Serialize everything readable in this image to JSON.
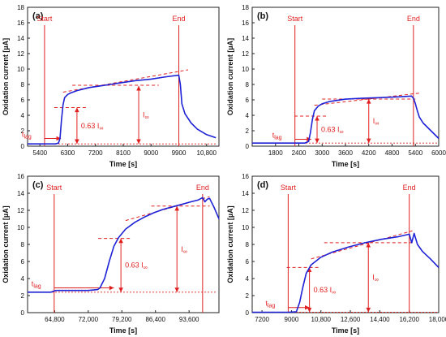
{
  "chart_data": [
    {
      "type": "line",
      "panel_label": "(a)",
      "xlabel": "Time [s]",
      "ylabel": "Oxidation current [µA]",
      "xlim": [
        5000,
        11200
      ],
      "ylim": [
        0,
        18
      ],
      "xticks": [
        5400,
        6300,
        7200,
        8100,
        9000,
        9900,
        10800
      ],
      "xtick_labels": [
        "5400",
        "6300",
        "7200",
        "8100",
        "9000",
        "9900",
        "10,800"
      ],
      "yticks": [
        0,
        2,
        4,
        6,
        8,
        10,
        12,
        14,
        16,
        18
      ],
      "series": [
        {
          "x": [
            5000,
            5600,
            5900,
            6000,
            6050,
            6100,
            6150,
            6200,
            6300,
            6400,
            6600,
            7000,
            7500,
            8000,
            8500,
            9000,
            9500,
            9900,
            9950,
            10000,
            10100,
            10300,
            10500,
            10800,
            11100
          ],
          "y": [
            0.3,
            0.3,
            0.3,
            0.4,
            1.0,
            3.5,
            5.4,
            6.3,
            6.7,
            6.9,
            7.2,
            7.6,
            7.9,
            8.2,
            8.5,
            8.7,
            9.0,
            9.2,
            8.0,
            5.5,
            4.2,
            3.0,
            2.2,
            1.5,
            1.1
          ]
        }
      ],
      "annotations": {
        "start": {
          "x": 5550,
          "label": "Start"
        },
        "end": {
          "x": 9900,
          "label": "End"
        },
        "t_lag": {
          "label": "t",
          "sub": "lag",
          "x0": 5550,
          "x1": 6080,
          "y": 1.0
        },
        "i_inf": {
          "label": "I",
          "sub": "∞",
          "level": 7.8,
          "x": 8600
        },
        "i63": {
          "label": "0.63 I",
          "sub": "∞",
          "level": 5.0,
          "x": 6600
        },
        "tangent": [
          [
            6150,
            7.0
          ],
          [
            10200,
            9.9
          ]
        ],
        "steady": [
          [
            6450,
            7.9
          ],
          [
            9250,
            7.9
          ]
        ]
      }
    },
    {
      "type": "line",
      "panel_label": "(b)",
      "xlabel": "Time [s]",
      "ylabel": "Oxidation current [µA]",
      "xlim": [
        1200,
        6000
      ],
      "ylim": [
        0,
        18
      ],
      "xticks": [
        1800,
        2400,
        3000,
        3600,
        4200,
        4800,
        5400,
        6000
      ],
      "xtick_labels": [
        "1800",
        "2400",
        "3000",
        "3600",
        "4200",
        "4800",
        "5400",
        "6000"
      ],
      "yticks": [
        0,
        2,
        4,
        6,
        8,
        10,
        12,
        14,
        16,
        18
      ],
      "series": [
        {
          "x": [
            1200,
            2200,
            2550,
            2650,
            2700,
            2750,
            2800,
            2900,
            3000,
            3200,
            3600,
            4000,
            4500,
            5000,
            5300,
            5350,
            5400,
            5450,
            5500,
            5600,
            5800,
            6000
          ],
          "y": [
            0.4,
            0.4,
            0.4,
            0.6,
            1.8,
            3.5,
            4.6,
            5.2,
            5.5,
            5.8,
            6.1,
            6.2,
            6.3,
            6.4,
            6.5,
            6.2,
            5.5,
            4.6,
            3.8,
            3.0,
            2.0,
            1.0
          ]
        }
      ],
      "annotations": {
        "start": {
          "x": 2300,
          "label": "Start"
        },
        "end": {
          "x": 5350,
          "label": "End"
        },
        "t_lag": {
          "label": "t",
          "sub": "lag",
          "x0": 2300,
          "x1": 2720,
          "y": 0.9
        },
        "i_inf": {
          "label": "I",
          "sub": "∞",
          "level": 6.1,
          "x": 4200
        },
        "i63": {
          "label": "0.63 I",
          "sub": "∞",
          "level": 3.9,
          "x": 2870
        },
        "tangent": [
          [
            2800,
            5.3
          ],
          [
            5550,
            6.9
          ]
        ],
        "steady": [
          [
            3000,
            6.1
          ],
          [
            5400,
            6.1
          ]
        ]
      }
    },
    {
      "type": "line",
      "panel_label": "(c)",
      "xlabel": "Time [s]",
      "ylabel": "Oxidation current [µA]",
      "xlim": [
        59000,
        100000
      ],
      "ylim": [
        0,
        16
      ],
      "xticks": [
        64800,
        72000,
        79200,
        86400,
        93600
      ],
      "xtick_labels": [
        "64,800",
        "72,000",
        "79,200",
        "86,400",
        "93,600"
      ],
      "yticks": [
        0,
        2,
        4,
        6,
        8,
        10,
        12,
        14,
        16
      ],
      "series": [
        {
          "x": [
            59000,
            64000,
            65000,
            68000,
            72000,
            74000,
            74500,
            75500,
            76500,
            77500,
            78500,
            80000,
            82000,
            84000,
            86000,
            88000,
            90000,
            92000,
            94000,
            95500,
            96500,
            97000,
            97500,
            98000,
            99000,
            100000
          ],
          "y": [
            2.4,
            2.4,
            2.6,
            2.6,
            2.6,
            2.7,
            2.9,
            4.0,
            6.0,
            7.8,
            8.8,
            9.8,
            10.6,
            11.2,
            11.7,
            12.1,
            12.4,
            12.7,
            13.0,
            13.2,
            13.5,
            13.0,
            13.3,
            13.4,
            12.3,
            11.0
          ]
        }
      ],
      "annotations": {
        "start": {
          "x": 64700,
          "label": "Start"
        },
        "end": {
          "x": 96500,
          "label": "End"
        },
        "t_lag": {
          "label": "t",
          "sub": "lag",
          "x0": 64700,
          "x1": 77500,
          "y": 2.9
        },
        "i_inf": {
          "label": "I",
          "sub": "∞",
          "level": 12.5,
          "x": 91000
        },
        "i63": {
          "label": "0.63 I",
          "sub": "∞",
          "level": 8.7,
          "x": 79000
        },
        "tangent": [
          [
            80000,
            10.8
          ],
          [
            98000,
            13.6
          ]
        ],
        "steady": [
          [
            85500,
            12.5
          ],
          [
            98000,
            12.5
          ]
        ]
      }
    },
    {
      "type": "line",
      "panel_label": "(d)",
      "xlabel": "Time [s]",
      "ylabel": "Oxidation current [µA]",
      "xlim": [
        6600,
        18000
      ],
      "ylim": [
        0,
        16
      ],
      "xticks": [
        7200,
        9000,
        10800,
        12600,
        14400,
        16200,
        18000
      ],
      "xtick_labels": [
        "7200",
        "9000",
        "10,800",
        "12,600",
        "14,400",
        "16,200",
        "18,000"
      ],
      "yticks": [
        0,
        2,
        4,
        6,
        8,
        10,
        12,
        14,
        16
      ],
      "series": [
        {
          "x": [
            6600,
            8800,
            9300,
            9500,
            9700,
            9900,
            10200,
            10800,
            11500,
            12500,
            13500,
            14500,
            15500,
            16200,
            16350,
            16500,
            16700,
            17000,
            17500,
            18000
          ],
          "y": [
            0.05,
            0.05,
            0.1,
            1.2,
            3.0,
            4.6,
            5.6,
            6.5,
            7.1,
            7.7,
            8.2,
            8.6,
            8.9,
            9.2,
            8.2,
            9.3,
            8.0,
            7.2,
            6.3,
            5.3
          ]
        }
      ],
      "annotations": {
        "start": {
          "x": 8800,
          "label": "Start"
        },
        "end": {
          "x": 16200,
          "label": "End"
        },
        "t_lag": {
          "label": "t",
          "sub": "lag",
          "x0": 8800,
          "x1": 10100,
          "y": 0.6
        },
        "i_inf": {
          "label": "I",
          "sub": "∞",
          "level": 8.2,
          "x": 13700
        },
        "i63": {
          "label": "0.63 I",
          "sub": "∞",
          "level": 5.3,
          "x": 10100
        },
        "tangent": [
          [
            10200,
            6.3
          ],
          [
            16400,
            9.6
          ]
        ],
        "steady": [
          [
            11000,
            8.2
          ],
          [
            16400,
            8.2
          ]
        ]
      }
    }
  ]
}
